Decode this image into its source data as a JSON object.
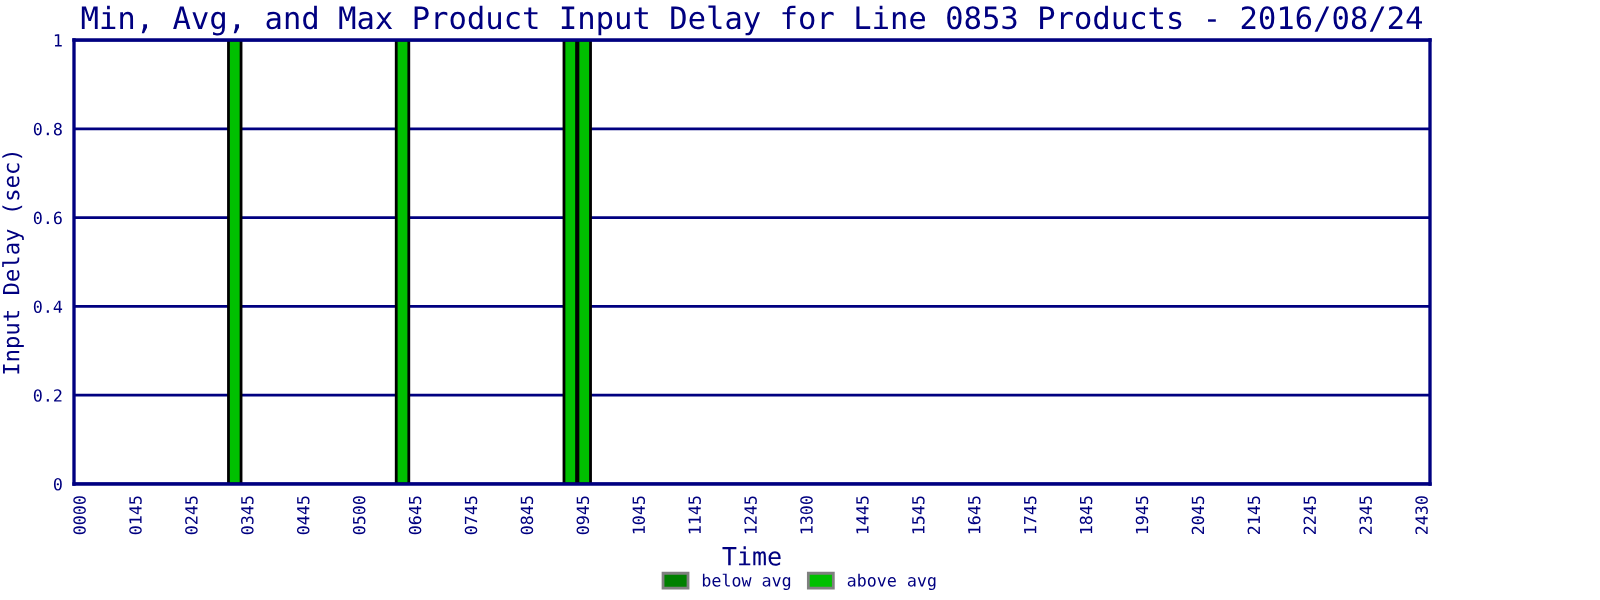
{
  "chart_data": {
    "type": "bar",
    "title": "Min, Avg, and Max Product Input Delay for Line 0853 Products - 2016/08/24",
    "xlabel": "Time",
    "ylabel": "Input Delay (sec)",
    "categories": [
      "0000",
      null,
      null,
      null,
      "0145",
      null,
      null,
      null,
      "0245",
      null,
      null,
      null,
      "0345",
      null,
      null,
      null,
      "0445",
      null,
      null,
      null,
      "0500",
      null,
      null,
      null,
      "0645",
      null,
      null,
      null,
      "0745",
      null,
      null,
      null,
      "0845",
      null,
      null,
      null,
      "0945",
      null,
      null,
      null,
      "1045",
      null,
      null,
      null,
      "1145",
      null,
      null,
      null,
      "1245",
      null,
      null,
      null,
      "1300",
      null,
      null,
      null,
      "1445",
      null,
      null,
      null,
      "1545",
      null,
      null,
      null,
      "1645",
      null,
      null,
      null,
      "1745",
      null,
      null,
      null,
      "1845",
      null,
      null,
      null,
      "1945",
      null,
      null,
      null,
      "2045",
      null,
      null,
      null,
      "2145",
      null,
      null,
      null,
      "2245",
      null,
      null,
      null,
      "2345",
      null,
      null,
      null,
      "2430"
    ],
    "series": [
      {
        "name": "below avg",
        "color": "#008000",
        "values": [
          null,
          null,
          null,
          null,
          null,
          null,
          null,
          null,
          null,
          null,
          null,
          null,
          null,
          null,
          null,
          null,
          null,
          null,
          null,
          null,
          null,
          null,
          null,
          null,
          null,
          null,
          null,
          null,
          null,
          null,
          null,
          null,
          null,
          null,
          null,
          null,
          null,
          null,
          null,
          null,
          null,
          null,
          null,
          null,
          null,
          null,
          null,
          null,
          null,
          null,
          null,
          null,
          null,
          null,
          null,
          null,
          null,
          null,
          null,
          null,
          null,
          null,
          null,
          null,
          null,
          null,
          null,
          null,
          null,
          null,
          null,
          null,
          null,
          null,
          null,
          null,
          null,
          null,
          null,
          null,
          null,
          null,
          null,
          null,
          null,
          null,
          null,
          null,
          null,
          null,
          null,
          null,
          null,
          null,
          null,
          null,
          null
        ]
      },
      {
        "name": "above avg",
        "color": "#00c000",
        "values": [
          null,
          null,
          null,
          null,
          null,
          null,
          null,
          null,
          null,
          null,
          null,
          1,
          null,
          null,
          null,
          null,
          null,
          null,
          null,
          null,
          null,
          null,
          null,
          1,
          null,
          null,
          null,
          null,
          null,
          null,
          null,
          null,
          null,
          null,
          null,
          1,
          1,
          null,
          null,
          null,
          null,
          null,
          null,
          null,
          null,
          null,
          null,
          null,
          null,
          null,
          null,
          null,
          null,
          null,
          null,
          null,
          null,
          null,
          null,
          null,
          null,
          null,
          null,
          null,
          null,
          null,
          null,
          null,
          null,
          null,
          null,
          null,
          null,
          null,
          null,
          null,
          null,
          null,
          null,
          null,
          null,
          null,
          null,
          null,
          null,
          null,
          null,
          null,
          null,
          null,
          null,
          null,
          null,
          null,
          null,
          null,
          null
        ]
      }
    ],
    "ylim": [
      0,
      1
    ],
    "yticks": [
      0,
      0.2,
      0.4,
      0.6,
      0.8,
      1
    ],
    "grid": "y",
    "legend": "bottom"
  }
}
